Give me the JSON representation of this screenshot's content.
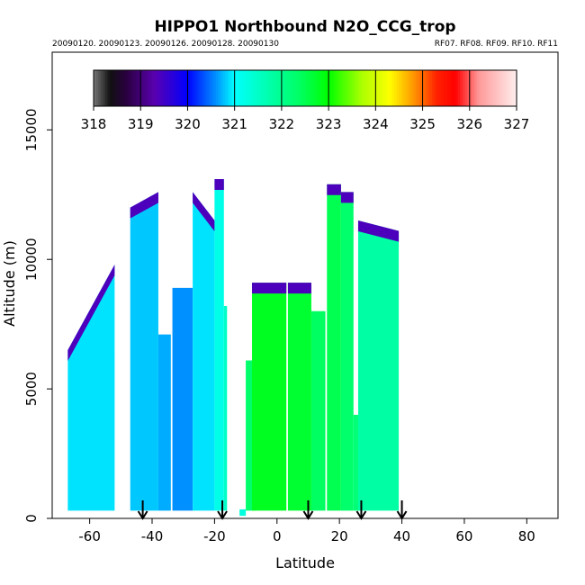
{
  "chart_data": {
    "type": "heatmap",
    "title": "HIPPO1 Northbound N2O_CCG_trop",
    "subtitle_left": "20090120. 20090123. 20090126. 20090128. 20090130",
    "subtitle_right": "RF07. RF08. RF09. RF10. RF11",
    "xlabel": "Latitude",
    "ylabel": "Altitude (m)",
    "xlim": [
      -72,
      90
    ],
    "ylim": [
      0,
      18000
    ],
    "x_ticks": [
      -60,
      -40,
      -20,
      0,
      20,
      40,
      60,
      80
    ],
    "y_ticks": [
      0,
      5000,
      10000,
      15000
    ],
    "colorbar": {
      "min": 318,
      "max": 327,
      "ticks": [
        318,
        319,
        320,
        321,
        322,
        323,
        324,
        325,
        326,
        327
      ],
      "stops": [
        {
          "v": 318.0,
          "c": "#777777"
        },
        {
          "v": 318.35,
          "c": "#111111"
        },
        {
          "v": 318.7,
          "c": "#2a0040"
        },
        {
          "v": 319.3,
          "c": "#5a00b0"
        },
        {
          "v": 320.0,
          "c": "#0000ff"
        },
        {
          "v": 320.6,
          "c": "#0090ff"
        },
        {
          "v": 321.0,
          "c": "#00ffff"
        },
        {
          "v": 321.7,
          "c": "#00ffb0"
        },
        {
          "v": 322.4,
          "c": "#00ff60"
        },
        {
          "v": 323.0,
          "c": "#00ff00"
        },
        {
          "v": 323.7,
          "c": "#aaff00"
        },
        {
          "v": 324.3,
          "c": "#ffff00"
        },
        {
          "v": 324.8,
          "c": "#ff9900"
        },
        {
          "v": 325.3,
          "c": "#ff2200"
        },
        {
          "v": 325.7,
          "c": "#ff0000"
        },
        {
          "v": 326.2,
          "c": "#ff9a9a"
        },
        {
          "v": 327.0,
          "c": "#ffeeee"
        }
      ]
    },
    "flight_markers_lat": [
      -43,
      -17.5,
      10,
      27,
      40
    ],
    "profiles": [
      {
        "lat_from": -67,
        "lat_to": -52,
        "alt_bottom": 300,
        "top_from": 6500,
        "top_to": 9800,
        "base_value": 320.9
      },
      {
        "lat_from": -47,
        "lat_to": -38,
        "alt_bottom": 300,
        "top_from": 12000,
        "top_to": 12600,
        "base_value": 320.8
      },
      {
        "lat_from": -38,
        "lat_to": -34,
        "alt_bottom": 300,
        "top_from": 7100,
        "top_to": 7100,
        "base_value": 320.7
      },
      {
        "lat_from": -33.5,
        "lat_to": -27,
        "alt_bottom": 300,
        "top_from": 8900,
        "top_to": 8900,
        "base_value": 320.6
      },
      {
        "lat_from": -27,
        "lat_to": -20,
        "alt_bottom": 300,
        "top_from": 12600,
        "top_to": 11500,
        "base_value": 320.9
      },
      {
        "lat_from": -20,
        "lat_to": -17,
        "alt_bottom": 300,
        "top_from": 13100,
        "top_to": 13100,
        "base_value": 321.2
      },
      {
        "lat_from": -17,
        "lat_to": -16,
        "alt_bottom": 300,
        "top_from": 8200,
        "top_to": 8200,
        "base_value": 321.5
      },
      {
        "lat_from": -12,
        "lat_to": -10,
        "alt_bottom": 100,
        "top_from": 350,
        "top_to": 350,
        "base_value": 321.3
      },
      {
        "lat_from": -10,
        "lat_to": -7,
        "alt_bottom": 300,
        "top_from": 6100,
        "top_to": 6100,
        "base_value": 322.3
      },
      {
        "lat_from": -8,
        "lat_to": 3,
        "alt_bottom": 300,
        "top_from": 9100,
        "top_to": 9100,
        "base_value": 322.8
      },
      {
        "lat_from": 3.5,
        "lat_to": 11,
        "alt_bottom": 300,
        "top_from": 9100,
        "top_to": 9100,
        "base_value": 322.7
      },
      {
        "lat_from": 11,
        "lat_to": 15.5,
        "alt_bottom": 300,
        "top_from": 8000,
        "top_to": 8000,
        "base_value": 322.4
      },
      {
        "lat_from": 16,
        "lat_to": 20.5,
        "alt_bottom": 300,
        "top_from": 12900,
        "top_to": 12900,
        "base_value": 322.5
      },
      {
        "lat_from": 20.5,
        "lat_to": 24.5,
        "alt_bottom": 300,
        "top_from": 12600,
        "top_to": 12600,
        "base_value": 322.3
      },
      {
        "lat_from": 24.5,
        "lat_to": 26,
        "alt_bottom": 300,
        "top_from": 4000,
        "top_to": 4000,
        "base_value": 322.2
      },
      {
        "lat_from": 26,
        "lat_to": 39,
        "alt_bottom": 300,
        "top_from": 11500,
        "top_to": 11100,
        "base_value": 321.8
      }
    ]
  }
}
